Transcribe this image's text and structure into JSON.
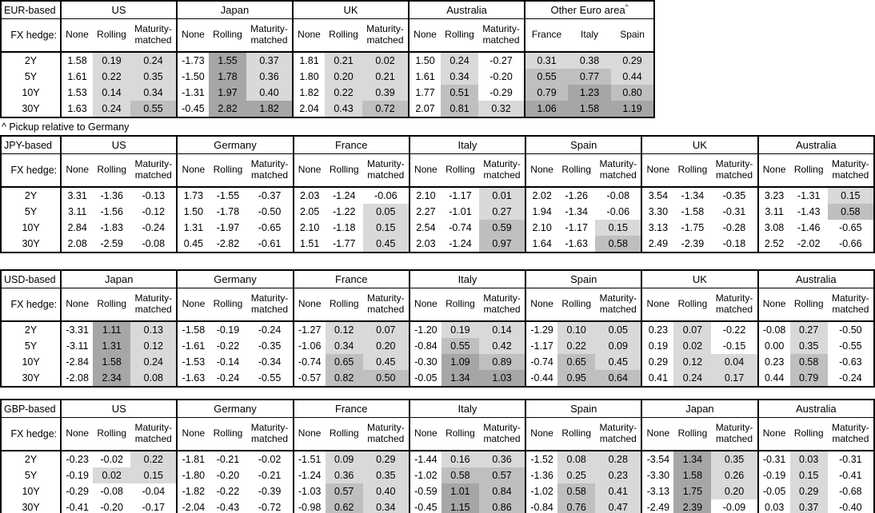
{
  "footnote": "^ Pickup relative to Germany",
  "fx_hedge_label": "FX hedge:",
  "maturity_row_labels": [
    "2Y",
    "5Y",
    "10Y",
    "30Y"
  ],
  "default_subheaders": [
    "None",
    "Rolling",
    "Maturity-matched"
  ],
  "shading": {
    "rule": "cell background by value: <=0 unshaded; 0 to 0.5 light; 0.5 to 1.0 medium; >1.0 dark; 'None' hedge column never shaded; Other Euro area columns always shaded by value",
    "light": "#d9d9d9",
    "medium": "#bfbfbf",
    "dark": "#a6a6a6",
    "unshaded": "#ffffff"
  },
  "tables": [
    {
      "base_label": "EUR-based",
      "groups": [
        {
          "name": "US",
          "rows": [
            [
              "1.58",
              "0.19",
              "0.24"
            ],
            [
              "1.61",
              "0.22",
              "0.35"
            ],
            [
              "1.53",
              "0.14",
              "0.34"
            ],
            [
              "1.63",
              "0.24",
              "0.55"
            ]
          ]
        },
        {
          "name": "Japan",
          "rows": [
            [
              "-1.73",
              "1.55",
              "0.37"
            ],
            [
              "-1.50",
              "1.78",
              "0.36"
            ],
            [
              "-1.31",
              "1.97",
              "0.40"
            ],
            [
              "-0.45",
              "2.82",
              "1.82"
            ]
          ]
        },
        {
          "name": "UK",
          "rows": [
            [
              "1.81",
              "0.21",
              "0.02"
            ],
            [
              "1.80",
              "0.20",
              "0.21"
            ],
            [
              "1.82",
              "0.22",
              "0.39"
            ],
            [
              "2.04",
              "0.43",
              "0.72"
            ]
          ]
        },
        {
          "name": "Australia",
          "rows": [
            [
              "1.50",
              "0.24",
              "-0.27"
            ],
            [
              "1.61",
              "0.34",
              "-0.20"
            ],
            [
              "1.77",
              "0.51",
              "-0.29"
            ],
            [
              "2.07",
              "0.81",
              "0.32"
            ]
          ]
        },
        {
          "name": "Other Euro area",
          "superscript": "^",
          "shade_all": true,
          "subheaders": [
            "France",
            "Italy",
            "Spain"
          ],
          "rows": [
            [
              "0.31",
              "0.38",
              "0.29"
            ],
            [
              "0.55",
              "0.77",
              "0.44"
            ],
            [
              "0.79",
              "1.23",
              "0.80"
            ],
            [
              "1.06",
              "1.58",
              "1.19"
            ]
          ]
        }
      ]
    },
    {
      "base_label": "JPY-based",
      "groups": [
        {
          "name": "US",
          "rows": [
            [
              "3.31",
              "-1.36",
              "-0.13"
            ],
            [
              "3.11",
              "-1.56",
              "-0.12"
            ],
            [
              "2.84",
              "-1.83",
              "-0.24"
            ],
            [
              "2.08",
              "-2.59",
              "-0.08"
            ]
          ]
        },
        {
          "name": "Germany",
          "rows": [
            [
              "1.73",
              "-1.55",
              "-0.37"
            ],
            [
              "1.50",
              "-1.78",
              "-0.50"
            ],
            [
              "1.31",
              "-1.97",
              "-0.65"
            ],
            [
              "0.45",
              "-2.82",
              "-0.61"
            ]
          ]
        },
        {
          "name": "France",
          "rows": [
            [
              "2.03",
              "-1.24",
              "-0.06"
            ],
            [
              "2.05",
              "-1.22",
              "0.05"
            ],
            [
              "2.10",
              "-1.18",
              "0.15"
            ],
            [
              "1.51",
              "-1.77",
              "0.45"
            ]
          ]
        },
        {
          "name": "Italy",
          "rows": [
            [
              "2.10",
              "-1.17",
              "0.01"
            ],
            [
              "2.27",
              "-1.01",
              "0.27"
            ],
            [
              "2.54",
              "-0.74",
              "0.59"
            ],
            [
              "2.03",
              "-1.24",
              "0.97"
            ]
          ]
        },
        {
          "name": "Spain",
          "rows": [
            [
              "2.02",
              "-1.26",
              "-0.08"
            ],
            [
              "1.94",
              "-1.34",
              "-0.06"
            ],
            [
              "2.10",
              "-1.17",
              "0.15"
            ],
            [
              "1.64",
              "-1.63",
              "0.58"
            ]
          ]
        },
        {
          "name": "UK",
          "rows": [
            [
              "3.54",
              "-1.34",
              "-0.35"
            ],
            [
              "3.30",
              "-1.58",
              "-0.31"
            ],
            [
              "3.13",
              "-1.75",
              "-0.28"
            ],
            [
              "2.49",
              "-2.39",
              "-0.18"
            ]
          ]
        },
        {
          "name": "Australia",
          "rows": [
            [
              "3.23",
              "-1.31",
              "0.15"
            ],
            [
              "3.11",
              "-1.43",
              "0.58"
            ],
            [
              "3.08",
              "-1.46",
              "-0.65"
            ],
            [
              "2.52",
              "-2.02",
              "-0.66"
            ]
          ]
        }
      ]
    },
    {
      "base_label": "USD-based",
      "groups": [
        {
          "name": "Japan",
          "rows": [
            [
              "-3.31",
              "1.11",
              "0.13"
            ],
            [
              "-3.11",
              "1.31",
              "0.12"
            ],
            [
              "-2.84",
              "1.58",
              "0.24"
            ],
            [
              "-2.08",
              "2.34",
              "0.08"
            ]
          ]
        },
        {
          "name": "Germany",
          "rows": [
            [
              "-1.58",
              "-0.19",
              "-0.24"
            ],
            [
              "-1.61",
              "-0.22",
              "-0.35"
            ],
            [
              "-1.53",
              "-0.14",
              "-0.34"
            ],
            [
              "-1.63",
              "-0.24",
              "-0.55"
            ]
          ]
        },
        {
          "name": "France",
          "rows": [
            [
              "-1.27",
              "0.12",
              "0.07"
            ],
            [
              "-1.06",
              "0.34",
              "0.20"
            ],
            [
              "-0.74",
              "0.65",
              "0.45"
            ],
            [
              "-0.57",
              "0.82",
              "0.50"
            ]
          ]
        },
        {
          "name": "Italy",
          "rows": [
            [
              "-1.20",
              "0.19",
              "0.14"
            ],
            [
              "-0.84",
              "0.55",
              "0.42"
            ],
            [
              "-0.30",
              "1.09",
              "0.89"
            ],
            [
              "-0.05",
              "1.34",
              "1.03"
            ]
          ]
        },
        {
          "name": "Spain",
          "rows": [
            [
              "-1.29",
              "0.10",
              "0.05"
            ],
            [
              "-1.17",
              "0.22",
              "0.09"
            ],
            [
              "-0.74",
              "0.65",
              "0.45"
            ],
            [
              "-0.44",
              "0.95",
              "0.64"
            ]
          ]
        },
        {
          "name": "UK",
          "rows": [
            [
              "0.23",
              "0.07",
              "-0.22"
            ],
            [
              "0.19",
              "0.02",
              "-0.15"
            ],
            [
              "0.29",
              "0.12",
              "0.04"
            ],
            [
              "0.41",
              "0.24",
              "0.17"
            ]
          ]
        },
        {
          "name": "Australia",
          "rows": [
            [
              "-0.08",
              "0.27",
              "-0.50"
            ],
            [
              "0.00",
              "0.35",
              "-0.55"
            ],
            [
              "0.23",
              "0.58",
              "-0.63"
            ],
            [
              "0.44",
              "0.79",
              "-0.24"
            ]
          ]
        }
      ]
    },
    {
      "base_label": "GBP-based",
      "groups": [
        {
          "name": "US",
          "rows": [
            [
              "-0.23",
              "-0.02",
              "0.22"
            ],
            [
              "-0.19",
              "0.02",
              "0.15"
            ],
            [
              "-0.29",
              "-0.08",
              "-0.04"
            ],
            [
              "-0.41",
              "-0.20",
              "-0.17"
            ]
          ]
        },
        {
          "name": "Germany",
          "rows": [
            [
              "-1.81",
              "-0.21",
              "-0.02"
            ],
            [
              "-1.80",
              "-0.20",
              "-0.21"
            ],
            [
              "-1.82",
              "-0.22",
              "-0.39"
            ],
            [
              "-2.04",
              "-0.43",
              "-0.72"
            ]
          ]
        },
        {
          "name": "France",
          "rows": [
            [
              "-1.51",
              "0.09",
              "0.29"
            ],
            [
              "-1.24",
              "0.36",
              "0.35"
            ],
            [
              "-1.03",
              "0.57",
              "0.40"
            ],
            [
              "-0.98",
              "0.62",
              "0.34"
            ]
          ]
        },
        {
          "name": "Italy",
          "rows": [
            [
              "-1.44",
              "0.16",
              "0.36"
            ],
            [
              "-1.02",
              "0.58",
              "0.57"
            ],
            [
              "-0.59",
              "1.01",
              "0.84"
            ],
            [
              "-0.45",
              "1.15",
              "0.86"
            ]
          ]
        },
        {
          "name": "Spain",
          "rows": [
            [
              "-1.52",
              "0.08",
              "0.28"
            ],
            [
              "-1.36",
              "0.25",
              "0.23"
            ],
            [
              "-1.02",
              "0.58",
              "0.41"
            ],
            [
              "-0.84",
              "0.76",
              "0.47"
            ]
          ]
        },
        {
          "name": "Japan",
          "rows": [
            [
              "-3.54",
              "1.34",
              "0.35"
            ],
            [
              "-3.30",
              "1.58",
              "0.26"
            ],
            [
              "-3.13",
              "1.75",
              "0.20"
            ],
            [
              "-2.49",
              "2.39",
              "-0.09"
            ]
          ]
        },
        {
          "name": "Australia",
          "rows": [
            [
              "-0.31",
              "0.03",
              "-0.31"
            ],
            [
              "-0.19",
              "0.15",
              "-0.41"
            ],
            [
              "-0.05",
              "0.29",
              "-0.68"
            ],
            [
              "0.03",
              "0.37",
              "-0.40"
            ]
          ]
        }
      ]
    }
  ]
}
